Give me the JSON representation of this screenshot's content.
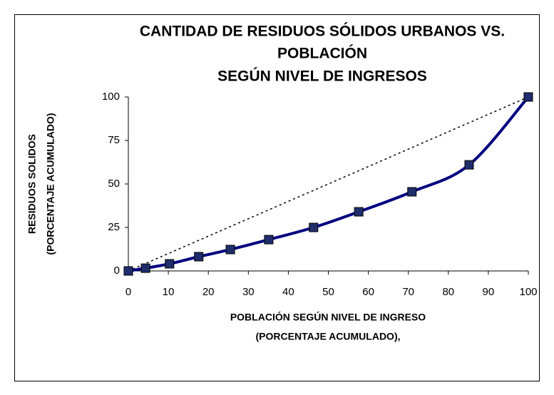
{
  "chart_data": {
    "type": "line",
    "title": [
      "CANTIDAD DE RESIDUOS SÓLIDOS URBANOS VS.",
      "POBLACIÓN",
      "SEGÚN NIVEL DE INGRESOS"
    ],
    "x_label": [
      "POBLACIÓN SEGÚN NIVEL DE INGRESO",
      "(PORCENTAJE ACUMULADO),"
    ],
    "y_label": [
      "RESIDUOS SOLIDOS",
      "(PORCENTAJE ACUMULADO)"
    ],
    "series": [
      {
        "color": "#000080",
        "marker_color": "#1f2d6b",
        "smooth": true,
        "x": [
          0,
          4.3,
          10.3,
          17.6,
          25.5,
          35.1,
          46.3,
          57.6,
          70.9,
          85.2,
          100
        ],
        "values": [
          0,
          1.6,
          4.1,
          8.2,
          12.3,
          18,
          25,
          34,
          45.5,
          61,
          100
        ]
      },
      {
        "color": "#000000",
        "dashed": true,
        "x": [
          0,
          100
        ],
        "values": [
          0,
          100
        ]
      }
    ],
    "xlim": [
      0,
      100
    ],
    "xticks": [
      0,
      10,
      20,
      30,
      40,
      50,
      60,
      70,
      80,
      90,
      100
    ],
    "ylim": [
      0,
      100
    ],
    "yticks": [
      0,
      25,
      50,
      75,
      100
    ]
  }
}
